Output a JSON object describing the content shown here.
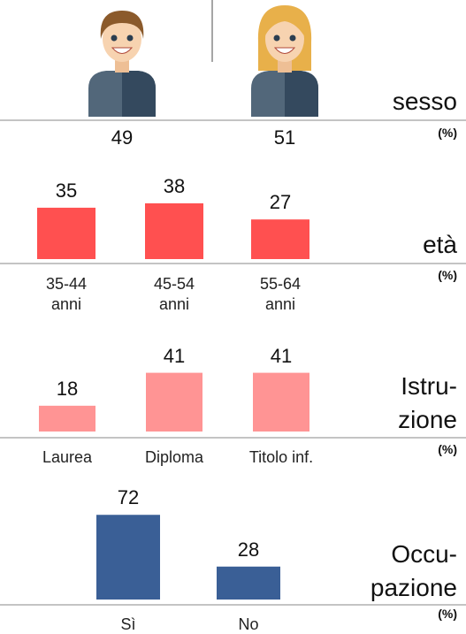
{
  "chart_data": [
    {
      "type": "pictogram",
      "title": "sesso",
      "unit": "(%)",
      "values": [
        49,
        51
      ]
    },
    {
      "type": "bar",
      "title": "età",
      "unit": "(%)",
      "categories": [
        "35-44\nanni",
        "45-54\nanni",
        "55-64\nanni"
      ],
      "values": [
        35,
        38,
        27
      ],
      "color": "#ff5050"
    },
    {
      "type": "bar",
      "title": "Istru-\nzione",
      "unit": "(%)",
      "categories": [
        "Laurea",
        "Diploma",
        "Titolo inf."
      ],
      "values": [
        18,
        41,
        41
      ],
      "color": "#ff9494"
    },
    {
      "type": "bar",
      "title": "Occu-\npazione",
      "unit": "(%)",
      "categories": [
        "Sì",
        "No"
      ],
      "values": [
        72,
        28
      ],
      "color": "#3a5f96"
    }
  ]
}
